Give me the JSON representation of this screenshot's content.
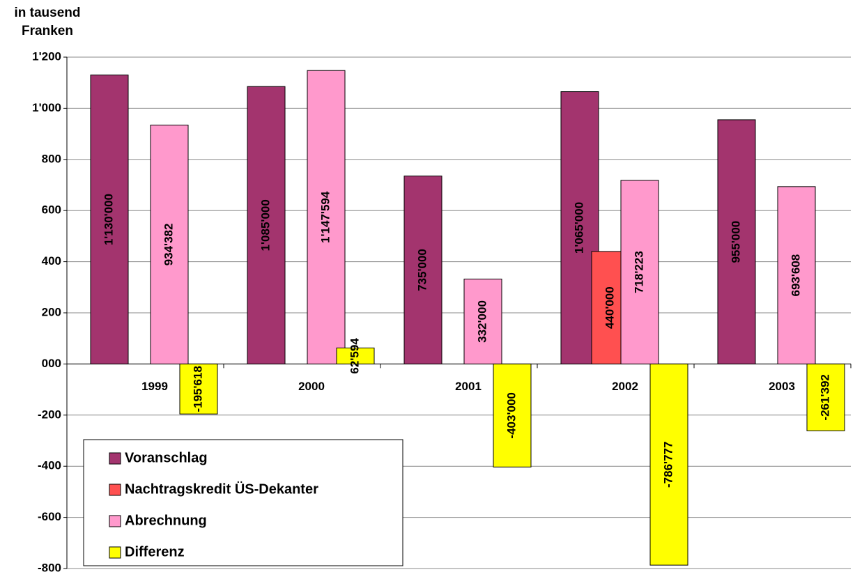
{
  "chart_data": {
    "type": "bar",
    "y_label": "in tausend Franken",
    "categories": [
      "1999",
      "2000",
      "2001",
      "2002",
      "2003"
    ],
    "series": [
      {
        "name": "Voranschlag",
        "color": "#a3346e",
        "values": [
          1130,
          1085,
          735,
          1065,
          955
        ],
        "value_labels": [
          "1'130'000",
          "1'085'000",
          "735'000",
          "1'065'000",
          "955'000"
        ]
      },
      {
        "name": "Nachtragskredit ÜS-Dekanter",
        "color": "#ff5050",
        "values": [
          null,
          null,
          null,
          440,
          null
        ],
        "value_labels": [
          null,
          null,
          null,
          "440'000",
          null
        ]
      },
      {
        "name": "Abrechnung",
        "color": "#ff99cc",
        "values": [
          934.382,
          1147.594,
          332,
          718.223,
          693.608
        ],
        "value_labels": [
          "934'382",
          "1'147'594",
          "332'000",
          "718'223",
          "693'608"
        ]
      },
      {
        "name": "Differenz",
        "color": "#ffff00",
        "values": [
          -195.618,
          62.594,
          -403,
          -786.777,
          -261.392
        ],
        "value_labels": [
          "-195'618",
          "62'594",
          "-403'000",
          "-786'777",
          "-261'392"
        ]
      }
    ],
    "ylim": [
      -800,
      1200
    ],
    "yticks": [
      -800,
      -600,
      -400,
      -200,
      {
        "value": 0,
        "label": "000"
      },
      200,
      400,
      600,
      800,
      {
        "value": 1000,
        "label": "1'000"
      },
      {
        "value": 1200,
        "label": "1'200"
      }
    ],
    "grid": true,
    "legend": "bottom-left"
  }
}
